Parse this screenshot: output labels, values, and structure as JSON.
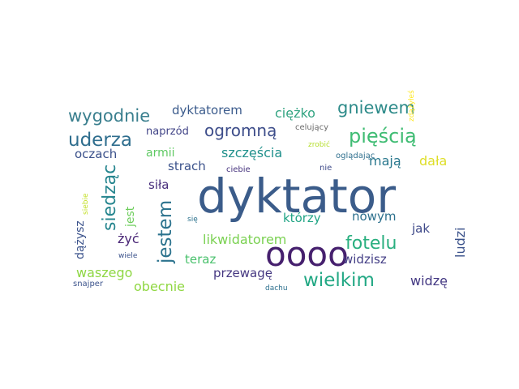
{
  "word_cloud": {
    "words": [
      {
        "text": "dyktator",
        "color": "#3b5c8a"
      },
      {
        "text": "oooo",
        "color": "#46206e"
      },
      {
        "text": "wygodnie",
        "color": "#3a7f8e"
      },
      {
        "text": "gniewem",
        "color": "#2e8b8a"
      },
      {
        "text": "dyktatorem",
        "color": "#3b5b8c"
      },
      {
        "text": "ciężko",
        "color": "#33a482"
      },
      {
        "text": "uderza",
        "color": "#2f6e8e"
      },
      {
        "text": "ogromną",
        "color": "#3d4d8a"
      },
      {
        "text": "pięścią",
        "color": "#3fbc73"
      },
      {
        "text": "naprzód",
        "color": "#414487"
      },
      {
        "text": "celujący",
        "color": "#6c6c6c"
      },
      {
        "text": "zdążyłeś",
        "color": "#fde725"
      },
      {
        "text": "oczach",
        "color": "#3b518b"
      },
      {
        "text": "armii",
        "color": "#5ec962"
      },
      {
        "text": "szczęścia",
        "color": "#21918c"
      },
      {
        "text": "zrobić",
        "color": "#b5de2b"
      },
      {
        "text": "siedząc",
        "color": "#25858e"
      },
      {
        "text": "strach",
        "color": "#3b528b"
      },
      {
        "text": "mają",
        "color": "#2a788e"
      },
      {
        "text": "dała",
        "color": "#dede28"
      },
      {
        "text": "oglądając",
        "color": "#2e6f8e"
      },
      {
        "text": "ciebie",
        "color": "#46337e"
      },
      {
        "text": "nie",
        "color": "#3e4a89"
      },
      {
        "text": "siebie",
        "color": "#c2df23"
      },
      {
        "text": "siła",
        "color": "#472d7b"
      },
      {
        "text": "jest",
        "color": "#6ccd5a"
      },
      {
        "text": "jestem",
        "color": "#2c738e"
      },
      {
        "text": "którzy",
        "color": "#21a585"
      },
      {
        "text": "nowym",
        "color": "#2d718e"
      },
      {
        "text": "jak",
        "color": "#3e4989"
      },
      {
        "text": "ludzi",
        "color": "#3b528b"
      },
      {
        "text": "się",
        "color": "#2c728e"
      },
      {
        "text": "żyć",
        "color": "#482475"
      },
      {
        "text": "dążysz",
        "color": "#3b528b"
      },
      {
        "text": "likwidatorem",
        "color": "#7ad151"
      },
      {
        "text": "fotelu",
        "color": "#29af7f"
      },
      {
        "text": "wiele",
        "color": "#3b528b"
      },
      {
        "text": "teraz",
        "color": "#4ac16d"
      },
      {
        "text": "widzisz",
        "color": "#433e85"
      },
      {
        "text": "waszego",
        "color": "#8fd744"
      },
      {
        "text": "przewagę",
        "color": "#453781"
      },
      {
        "text": "wielkim",
        "color": "#22a884"
      },
      {
        "text": "snajper",
        "color": "#3b528b"
      },
      {
        "text": "obecnie",
        "color": "#90d743"
      },
      {
        "text": "dachu",
        "color": "#2d708e"
      },
      {
        "text": "widzę",
        "color": "#443983"
      }
    ]
  }
}
